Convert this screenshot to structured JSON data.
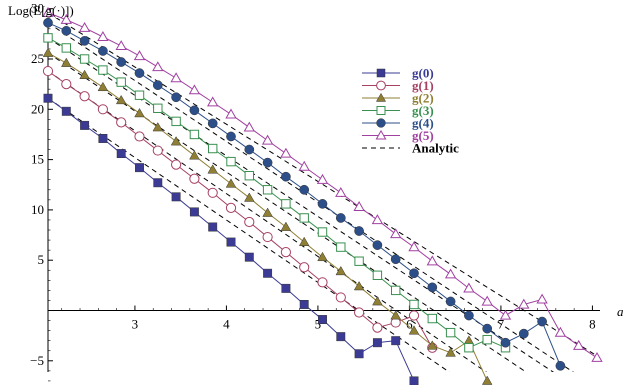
{
  "chart_data": {
    "type": "line",
    "title": "",
    "ylabel": "Log(E[g(·)])",
    "xlabel": "a",
    "xlim": [
      2.05,
      8.1
    ],
    "ylim": [
      -7.8,
      30.5
    ],
    "x_origin": 2.05,
    "x_ticks": [
      3,
      4,
      5,
      6,
      7,
      8
    ],
    "y_ticks": [
      -5,
      5,
      10,
      15,
      20,
      25,
      30
    ],
    "x_tick_labels": [
      "3",
      "4",
      "5",
      "6",
      "7",
      "8"
    ],
    "y_tick_labels": [
      "−5",
      "5",
      "10",
      "15",
      "20",
      "25",
      "30"
    ],
    "legend_position": "top-center",
    "grid": false,
    "series": [
      {
        "name": "g(0)",
        "color": "#3b3b96",
        "marker": "square-filled",
        "x": [
          2.05,
          2.25,
          2.45,
          2.65,
          2.85,
          3.05,
          3.25,
          3.45,
          3.65,
          3.85,
          4.05,
          4.25,
          4.45,
          4.65,
          4.85,
          5.05,
          5.25,
          5.45,
          5.65,
          5.85,
          6.05
        ],
        "y": [
          21.1,
          19.8,
          18.4,
          17.1,
          15.6,
          14.2,
          12.7,
          11.3,
          9.8,
          8.3,
          6.8,
          5.3,
          3.7,
          2.2,
          0.6,
          -0.9,
          -2.6,
          -4.3,
          -3.2,
          -3.0,
          -7.0
        ]
      },
      {
        "name": "g(1)",
        "color": "#a64064",
        "marker": "circle-open",
        "x": [
          2.05,
          2.25,
          2.45,
          2.65,
          2.85,
          3.05,
          3.25,
          3.45,
          3.65,
          3.85,
          4.05,
          4.25,
          4.45,
          4.65,
          4.85,
          5.05,
          5.25,
          5.45,
          5.65,
          5.85,
          6.05,
          6.25
        ],
        "y": [
          23.8,
          22.5,
          21.3,
          20.0,
          18.7,
          17.3,
          15.9,
          14.5,
          13.1,
          11.7,
          10.2,
          8.8,
          7.3,
          5.8,
          4.3,
          2.8,
          1.3,
          -0.2,
          -1.7,
          -1.2,
          -0.5,
          -3.7
        ]
      },
      {
        "name": "g(2)",
        "color": "#8f7f34",
        "marker": "triangle-filled",
        "x": [
          2.05,
          2.25,
          2.45,
          2.65,
          2.85,
          3.05,
          3.25,
          3.45,
          3.65,
          3.85,
          4.05,
          4.25,
          4.45,
          4.65,
          4.85,
          5.05,
          5.25,
          5.45,
          5.65,
          5.85,
          6.05,
          6.25,
          6.45,
          6.65,
          6.85
        ],
        "y": [
          25.6,
          24.6,
          23.4,
          22.2,
          20.9,
          19.6,
          18.2,
          16.8,
          15.4,
          14.0,
          12.6,
          11.2,
          9.7,
          8.3,
          6.8,
          5.3,
          3.9,
          2.4,
          0.9,
          -0.5,
          -2.0,
          -3.5,
          -4.2,
          -3.0,
          -7.0
        ]
      },
      {
        "name": "g(3)",
        "color": "#3a9050",
        "marker": "square-open",
        "x": [
          2.05,
          2.25,
          2.45,
          2.65,
          2.85,
          3.05,
          3.25,
          3.45,
          3.65,
          3.85,
          4.05,
          4.25,
          4.45,
          4.65,
          4.85,
          5.05,
          5.25,
          5.45,
          5.65,
          5.85,
          6.05,
          6.25,
          6.45,
          6.65,
          6.85,
          7.05
        ],
        "y": [
          27.1,
          26.1,
          25.0,
          23.9,
          22.7,
          21.4,
          20.1,
          18.8,
          17.5,
          16.1,
          14.8,
          13.4,
          12.0,
          10.6,
          9.2,
          7.8,
          6.3,
          4.9,
          3.5,
          2.0,
          0.6,
          -0.8,
          -2.2,
          -3.7,
          -2.9,
          -3.7
        ]
      },
      {
        "name": "g(4)",
        "color": "#2c4f8a",
        "marker": "circle-filled",
        "x": [
          2.05,
          2.25,
          2.45,
          2.65,
          2.85,
          3.05,
          3.25,
          3.45,
          3.65,
          3.85,
          4.05,
          4.25,
          4.45,
          4.65,
          4.85,
          5.05,
          5.25,
          5.45,
          5.65,
          5.85,
          6.05,
          6.25,
          6.45,
          6.65,
          6.85,
          7.05,
          7.25,
          7.45,
          7.65
        ],
        "y": [
          28.6,
          27.8,
          26.8,
          25.8,
          24.7,
          23.6,
          22.4,
          21.2,
          19.9,
          18.6,
          17.3,
          16.0,
          14.7,
          13.3,
          12.0,
          10.6,
          9.2,
          7.9,
          6.5,
          5.1,
          3.7,
          2.3,
          0.9,
          -0.5,
          -1.8,
          -3.2,
          -2.3,
          -1.1,
          -5.5
        ]
      },
      {
        "name": "g(5)",
        "color": "#a040a0",
        "marker": "triangle-open",
        "x": [
          2.05,
          2.25,
          2.45,
          2.65,
          2.85,
          3.05,
          3.25,
          3.45,
          3.65,
          3.85,
          4.05,
          4.25,
          4.45,
          4.65,
          4.85,
          5.05,
          5.25,
          5.45,
          5.65,
          5.85,
          6.05,
          6.25,
          6.45,
          6.65,
          6.85,
          7.05,
          7.25,
          7.45,
          7.65,
          7.85,
          8.05
        ],
        "y": [
          29.6,
          28.9,
          28.1,
          27.2,
          26.3,
          25.3,
          24.2,
          23.1,
          21.9,
          20.7,
          19.5,
          18.2,
          16.9,
          15.6,
          14.3,
          13.0,
          11.7,
          10.3,
          9.0,
          7.6,
          6.3,
          4.9,
          3.6,
          2.2,
          0.9,
          -0.5,
          0.6,
          1.1,
          -2.2,
          -3.5,
          -4.7
        ]
      },
      {
        "name": "Analytic",
        "color": "#000000",
        "style": "dashed",
        "lines": [
          {
            "x": [
              2.05,
              6.9
            ],
            "y": [
              21.1,
              -9.0
            ]
          },
          {
            "x": [
              2.05,
              7.3
            ],
            "y": [
              23.8,
              -9.0
            ]
          },
          {
            "x": [
              2.05,
              7.75
            ],
            "y": [
              25.6,
              -9.0
            ]
          },
          {
            "x": [
              2.05,
              8.05
            ],
            "y": [
              27.1,
              -9.0
            ]
          },
          {
            "x": [
              2.05,
              8.1
            ],
            "y": [
              28.6,
              -8.0
            ]
          },
          {
            "x": [
              2.05,
              8.1
            ],
            "y": [
              29.6,
              -4.8
            ]
          }
        ]
      }
    ]
  }
}
